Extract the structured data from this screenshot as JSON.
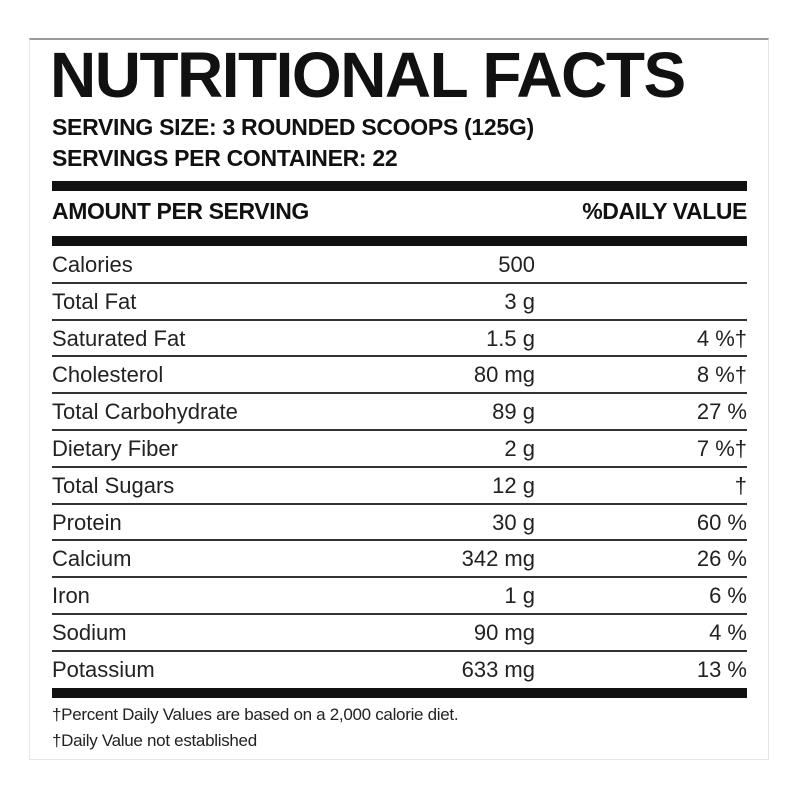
{
  "title": "NUTRITIONAL FACTS",
  "serving_size": "SERVING SIZE: 3 ROUNDED SCOOPS (125G)",
  "servings_per_container": "SERVINGS PER CONTAINER: 22",
  "header": {
    "amount": "AMOUNT PER SERVING",
    "daily_value": "%DAILY VALUE"
  },
  "rows": [
    {
      "name": "Calories",
      "amount": "500",
      "dv": ""
    },
    {
      "name": "Total Fat",
      "amount": "3 g",
      "dv": ""
    },
    {
      "name": "Saturated Fat",
      "amount": "1.5 g",
      "dv": "4 %†"
    },
    {
      "name": "Cholesterol",
      "amount": "80 mg",
      "dv": "8 %†"
    },
    {
      "name": "Total Carbohydrate",
      "amount": "89 g",
      "dv": "27 %"
    },
    {
      "name": "Dietary Fiber",
      "amount": "2 g",
      "dv": "7 %†"
    },
    {
      "name": "Total Sugars",
      "amount": "12 g",
      "dv": "†"
    },
    {
      "name": "Protein",
      "amount": "30 g",
      "dv": "60 %"
    },
    {
      "name": "Calcium",
      "amount": "342 mg",
      "dv": "26 %"
    },
    {
      "name": "Iron",
      "amount": "1 g",
      "dv": "6 %"
    },
    {
      "name": "Sodium",
      "amount": "90 mg",
      "dv": "4 %"
    },
    {
      "name": "Potassium",
      "amount": "633 mg",
      "dv": "13 %"
    }
  ],
  "footnotes": [
    "†Percent Daily Values are based on a 2,000 calorie diet.",
    "†Daily Value not established"
  ]
}
